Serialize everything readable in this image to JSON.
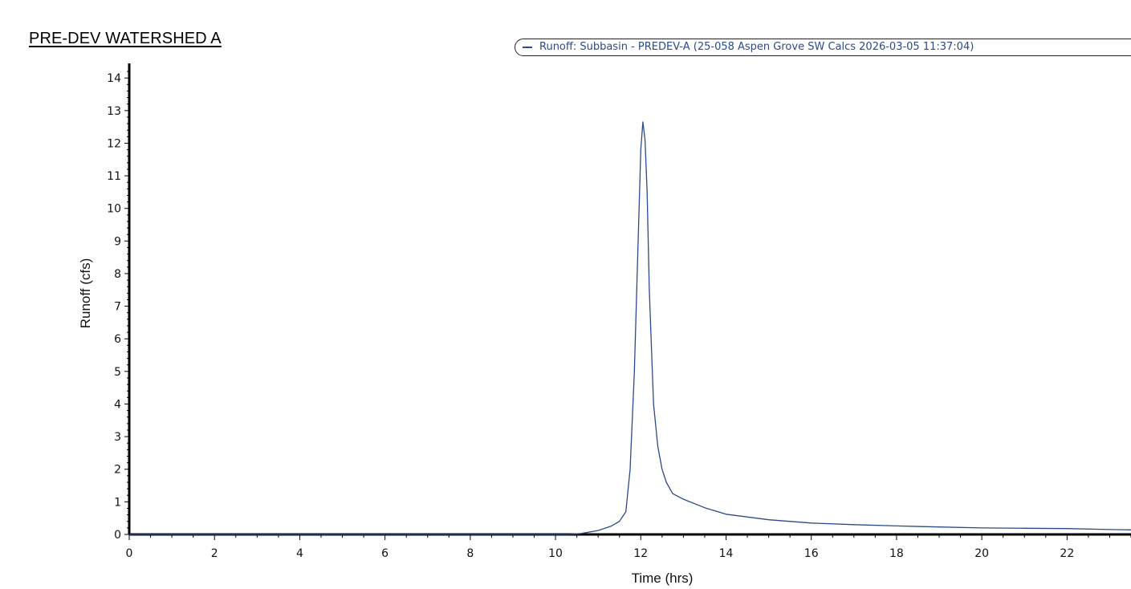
{
  "page": {
    "title": "PRE-DEV WATERSHED A"
  },
  "legend": {
    "label": "Runoff: Subbasin - PREDEV-A (25-058 Aspen Grove SW Calcs 2026-03-05 11:37:04)",
    "placement": "top-right"
  },
  "colors": {
    "series": "#2b4a8a",
    "axis": "#000000",
    "text": "#111111",
    "background": "#ffffff"
  },
  "chart_data": {
    "type": "line",
    "title": "",
    "xlabel": "Time (hrs)",
    "ylabel": "Runoff (cfs)",
    "xlim": [
      0,
      23.5
    ],
    "ylim": [
      0,
      14.3
    ],
    "x_ticks": [
      0,
      2,
      4,
      6,
      8,
      10,
      12,
      14,
      16,
      18,
      20,
      22
    ],
    "y_ticks": [
      0,
      1,
      2,
      3,
      4,
      5,
      6,
      7,
      8,
      9,
      10,
      11,
      12,
      13,
      14
    ],
    "x_minor_per_major": 4,
    "y_minor_per_major": 5,
    "grid": false,
    "legend_placement": "top-right",
    "series": [
      {
        "name": "Runoff: Subbasin - PREDEV-A (25-058 Aspen Grove SW Calcs 2026-03-05 11:37:04)",
        "x": [
          0,
          10.3,
          10.6,
          11.0,
          11.3,
          11.5,
          11.65,
          11.75,
          11.85,
          11.95,
          12.0,
          12.05,
          12.1,
          12.15,
          12.2,
          12.3,
          12.4,
          12.5,
          12.6,
          12.75,
          13.0,
          13.5,
          14.0,
          15.0,
          16.0,
          17.0,
          18.0,
          19.0,
          20.0,
          21.0,
          22.0,
          23.0,
          23.5
        ],
        "y": [
          0,
          0,
          0.03,
          0.12,
          0.25,
          0.4,
          0.7,
          2.0,
          5.0,
          9.5,
          11.8,
          12.65,
          12.1,
          10.5,
          7.5,
          4.0,
          2.7,
          2.0,
          1.6,
          1.25,
          1.08,
          0.82,
          0.62,
          0.45,
          0.35,
          0.3,
          0.26,
          0.23,
          0.2,
          0.19,
          0.18,
          0.15,
          0.14
        ]
      }
    ]
  }
}
